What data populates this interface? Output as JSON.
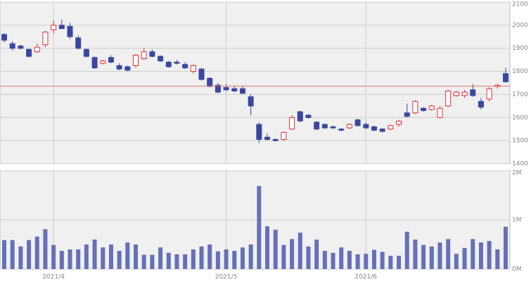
{
  "chart_data": [
    {
      "type": "candlestick",
      "open": [
        1960,
        1920,
        1910,
        1895,
        1885,
        1915,
        1980,
        2000,
        1995,
        1945,
        1895,
        1860,
        1835,
        1860,
        1825,
        1820,
        1825,
        1855,
        1885,
        1865,
        1840,
        1840,
        1830,
        1800,
        1810,
        1770,
        1740,
        1730,
        1725,
        1725,
        1690,
        1570,
        1515,
        1505,
        1505,
        1550,
        1625,
        1610,
        1580,
        1570,
        1560,
        1550,
        1555,
        1590,
        1570,
        1560,
        1550,
        1550,
        1570,
        1620,
        1620,
        1640,
        1635,
        1600,
        1650,
        1695,
        1695,
        1720,
        1670,
        1680,
        1735,
        1790
      ],
      "high": [
        1965,
        1930,
        1915,
        1900,
        1920,
        1975,
        2020,
        2025,
        2010,
        1955,
        1900,
        1865,
        1850,
        1870,
        1835,
        1825,
        1875,
        1900,
        1895,
        1870,
        1845,
        1850,
        1840,
        1830,
        1815,
        1775,
        1750,
        1745,
        1735,
        1735,
        1700,
        1580,
        1530,
        1510,
        1540,
        1610,
        1630,
        1615,
        1585,
        1575,
        1565,
        1555,
        1575,
        1595,
        1580,
        1565,
        1555,
        1570,
        1590,
        1660,
        1675,
        1645,
        1655,
        1650,
        1720,
        1715,
        1720,
        1745,
        1685,
        1730,
        1745,
        1815
      ],
      "low": [
        1925,
        1890,
        1895,
        1860,
        1880,
        1905,
        1965,
        1985,
        1940,
        1895,
        1860,
        1810,
        1830,
        1835,
        1805,
        1800,
        1815,
        1850,
        1860,
        1840,
        1815,
        1830,
        1810,
        1790,
        1760,
        1730,
        1705,
        1715,
        1710,
        1700,
        1610,
        1490,
        1500,
        1495,
        1500,
        1545,
        1580,
        1595,
        1545,
        1550,
        1550,
        1540,
        1550,
        1560,
        1550,
        1540,
        1535,
        1545,
        1560,
        1600,
        1615,
        1625,
        1630,
        1595,
        1645,
        1690,
        1685,
        1690,
        1635,
        1670,
        1725,
        1750
      ],
      "close": [
        1935,
        1900,
        1900,
        1865,
        1905,
        1970,
        2000,
        1985,
        1950,
        1900,
        1865,
        1815,
        1845,
        1840,
        1810,
        1805,
        1870,
        1885,
        1865,
        1845,
        1820,
        1835,
        1815,
        1825,
        1765,
        1735,
        1710,
        1720,
        1715,
        1705,
        1650,
        1505,
        1505,
        1500,
        1535,
        1600,
        1585,
        1600,
        1550,
        1555,
        1555,
        1545,
        1570,
        1565,
        1555,
        1545,
        1540,
        1565,
        1585,
        1605,
        1670,
        1630,
        1650,
        1640,
        1715,
        1710,
        1710,
        1695,
        1645,
        1725,
        1740,
        1755
      ],
      "up_color": "#e03030",
      "down_color": "#3a47a0",
      "reference_line": 1736,
      "reference_color": "#e07070",
      "ylim": [
        1400,
        2100
      ],
      "yticks": [
        1400,
        1500,
        1600,
        1700,
        1800,
        1900,
        2000,
        2100
      ],
      "grid": true
    },
    {
      "type": "bar",
      "categories": [
        null,
        null,
        null,
        null,
        null,
        null,
        "2021/4",
        null,
        null,
        null,
        null,
        null,
        null,
        null,
        null,
        null,
        null,
        null,
        null,
        null,
        null,
        null,
        null,
        null,
        null,
        null,
        null,
        "2021/5",
        null,
        null,
        null,
        null,
        null,
        null,
        null,
        null,
        null,
        null,
        null,
        null,
        null,
        null,
        null,
        null,
        "2021/6",
        null,
        null,
        null,
        null,
        null,
        null,
        null,
        null,
        null,
        null,
        null,
        null,
        null,
        null,
        null,
        null,
        null
      ],
      "values": [
        0.59,
        0.59,
        0.46,
        0.59,
        0.66,
        0.81,
        0.49,
        0.37,
        0.4,
        0.4,
        0.5,
        0.6,
        0.44,
        0.5,
        0.37,
        0.54,
        0.5,
        0.29,
        0.29,
        0.44,
        0.33,
        0.3,
        0.3,
        0.4,
        0.46,
        0.5,
        0.36,
        0.4,
        0.37,
        0.44,
        0.5,
        1.69,
        0.87,
        0.8,
        0.49,
        0.61,
        0.74,
        0.46,
        0.6,
        0.37,
        0.33,
        0.44,
        0.37,
        0.3,
        0.31,
        0.39,
        0.35,
        0.27,
        0.27,
        0.76,
        0.6,
        0.49,
        0.46,
        0.54,
        0.61,
        0.31,
        0.43,
        0.61,
        0.54,
        0.57,
        0.4,
        0.86
      ],
      "color": "#6670b8",
      "ylim": [
        0,
        2
      ],
      "yticks": [
        {
          "value": 0,
          "label": "0M"
        },
        {
          "value": 1,
          "label": "1M"
        },
        {
          "value": 2,
          "label": "2M"
        }
      ],
      "grid": true
    }
  ]
}
